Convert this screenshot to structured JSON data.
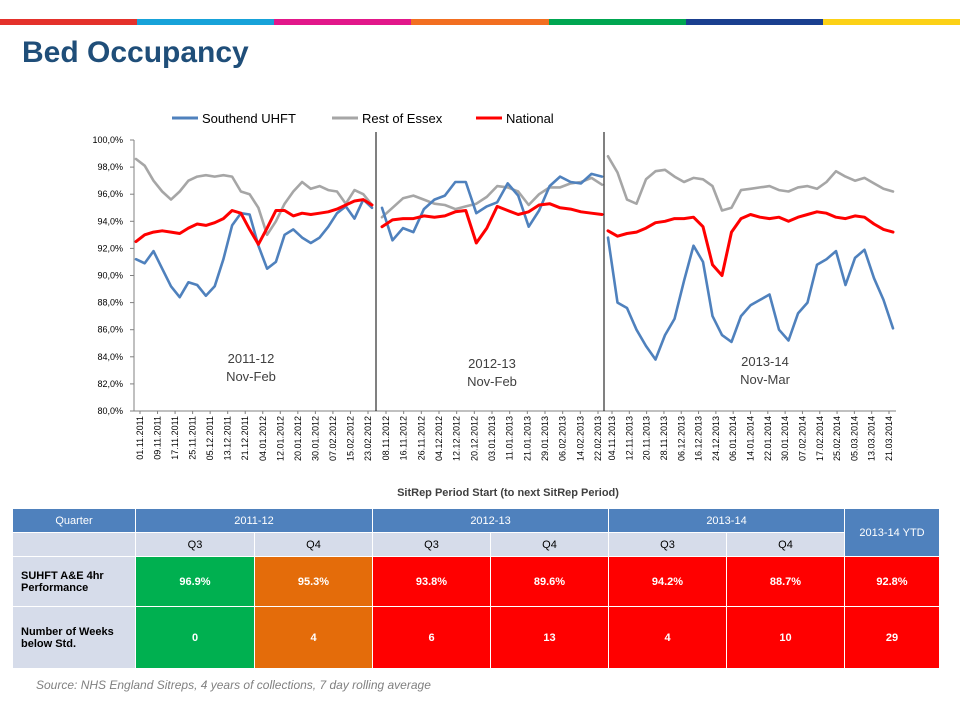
{
  "page": {
    "title": "Bed Occupancy"
  },
  "colors": {
    "top_bar": [
      "#e4312b",
      "#17a2d9",
      "#e2178a",
      "#f26f21",
      "#00a651",
      "#1a3f8f",
      "#fcd116"
    ],
    "southend": "#4f81bd",
    "rest_of_essex": "#a6a6a6",
    "national": "#ff0000",
    "table_header": "#4f81bd",
    "table_sub": "#d6dcea",
    "green": "#00b050",
    "orange": "#e46c0a",
    "red": "#ff0000"
  },
  "chart_data": {
    "type": "line",
    "xlabel": "SitRep Period Start (to next SitRep Period)",
    "ylabel": "",
    "ylim": [
      80,
      100
    ],
    "yticks": [
      "80,0%",
      "82,0%",
      "84,0%",
      "86,0%",
      "88,0%",
      "90,0%",
      "92,0%",
      "94,0%",
      "96,0%",
      "98,0%",
      "100,0%"
    ],
    "legend": {
      "position": "top",
      "entries": [
        "Southend UHFT",
        "Rest of Essex",
        "National"
      ]
    },
    "grid": false,
    "panels": [
      {
        "period": "2011-12",
        "label_lines": [
          "2011-12",
          "Nov-Feb"
        ],
        "x_ticks": [
          "01.11.2011",
          "09.11.2011",
          "17.11.2011",
          "25.11.2011",
          "05.12.2011",
          "13.12.2011",
          "21.12.2011",
          "04.01.2012",
          "12.01.2012",
          "20.01.2012",
          "30.01.2012",
          "07.02.2012",
          "15.02.2012",
          "23.02.2012"
        ],
        "series": [
          {
            "name": "Southend UHFT",
            "values": [
              91.2,
              90.9,
              91.8,
              90.5,
              89.2,
              88.4,
              89.5,
              89.3,
              88.5,
              89.2,
              91.2,
              93.7,
              94.6,
              94.5,
              92.2,
              90.5,
              91.0,
              93.0,
              93.4,
              92.8,
              92.4,
              92.8,
              93.6,
              94.6,
              95.1,
              94.2,
              95.6,
              95.0
            ]
          },
          {
            "name": "Rest of Essex",
            "values": [
              98.6,
              98.1,
              97.0,
              96.2,
              95.6,
              96.2,
              97.0,
              97.3,
              97.4,
              97.3,
              97.4,
              97.3,
              96.2,
              96.0,
              95.0,
              93.0,
              94.0,
              95.3,
              96.2,
              96.9,
              96.4,
              96.6,
              96.3,
              96.2,
              95.3,
              96.3,
              96.0,
              95.2
            ]
          },
          {
            "name": "National",
            "values": [
              92.5,
              93.0,
              93.2,
              93.3,
              93.2,
              93.1,
              93.5,
              93.8,
              93.7,
              93.9,
              94.2,
              94.8,
              94.6,
              93.4,
              92.3,
              93.5,
              94.8,
              94.8,
              94.4,
              94.6,
              94.5,
              94.6,
              94.7,
              94.9,
              95.2,
              95.5,
              95.6,
              95.2
            ]
          }
        ]
      },
      {
        "period": "2012-13",
        "label_lines": [
          "2012-13",
          "Nov-Feb"
        ],
        "x_ticks": [
          "08.11.2012",
          "16.11.2012",
          "26.11.2012",
          "04.12.2012",
          "12.12.2012",
          "20.12.2012",
          "03.01.2013",
          "11.01.2013",
          "21.01.2013",
          "29.01.2013",
          "06.02.2013",
          "14.02.2013",
          "22.02.2013"
        ],
        "series": [
          {
            "name": "Southend UHFT",
            "values": [
              95.0,
              92.6,
              93.5,
              93.2,
              94.9,
              95.6,
              95.9,
              96.9,
              96.9,
              94.6,
              95.1,
              95.4,
              96.8,
              95.9,
              93.6,
              94.8,
              96.6,
              97.3,
              96.9,
              96.8,
              97.5,
              97.3
            ]
          },
          {
            "name": "Rest of Essex",
            "values": [
              94.3,
              95.0,
              95.7,
              95.9,
              95.6,
              95.3,
              95.2,
              94.9,
              95.1,
              95.3,
              95.8,
              96.6,
              96.5,
              96.2,
              95.2,
              96.0,
              96.5,
              96.5,
              96.8,
              96.9,
              97.2,
              96.7
            ]
          },
          {
            "name": "National",
            "values": [
              93.6,
              94.1,
              94.2,
              94.2,
              94.4,
              94.3,
              94.4,
              94.7,
              94.8,
              92.4,
              93.5,
              95.1,
              94.8,
              94.5,
              94.7,
              95.2,
              95.3,
              95.0,
              94.9,
              94.7,
              94.6,
              94.5
            ]
          }
        ]
      },
      {
        "period": "2013-14",
        "label_lines": [
          "2013-14",
          "Nov-Mar"
        ],
        "x_ticks": [
          "04.11.2013",
          "12.11.2013",
          "20.11.2013",
          "28.11.2013",
          "06.12.2013",
          "16.12.2013",
          "24.12.2013",
          "06.01.2014",
          "14.01.2014",
          "22.01.2014",
          "30.01.2014",
          "07.02.2014",
          "17.02.2014",
          "25.02.2014",
          "05.03.2014",
          "13.03.2014",
          "21.03.2014"
        ],
        "series": [
          {
            "name": "Southend UHFT",
            "values": [
              92.8,
              88.0,
              87.6,
              86.0,
              84.8,
              83.8,
              85.6,
              86.8,
              89.6,
              92.2,
              91.0,
              87.0,
              85.6,
              85.1,
              87.0,
              87.8,
              88.2,
              88.6,
              86.0,
              85.2,
              87.2,
              88.0,
              90.8,
              91.2,
              91.8,
              89.3,
              91.3,
              91.9,
              89.8,
              88.2,
              86.1
            ]
          },
          {
            "name": "Rest of Essex",
            "values": [
              98.8,
              97.6,
              95.6,
              95.3,
              97.1,
              97.7,
              97.8,
              97.3,
              96.9,
              97.2,
              97.1,
              96.6,
              94.8,
              95.0,
              96.3,
              96.4,
              96.5,
              96.6,
              96.3,
              96.2,
              96.5,
              96.6,
              96.4,
              96.9,
              97.7,
              97.3,
              97.0,
              97.2,
              96.8,
              96.4,
              96.2
            ]
          },
          {
            "name": "National",
            "values": [
              93.3,
              92.9,
              93.1,
              93.2,
              93.5,
              93.9,
              94.0,
              94.2,
              94.2,
              94.3,
              93.6,
              90.8,
              90.0,
              93.2,
              94.2,
              94.5,
              94.3,
              94.2,
              94.3,
              94.0,
              94.3,
              94.5,
              94.7,
              94.6,
              94.3,
              94.2,
              94.4,
              94.3,
              93.8,
              93.4,
              93.2
            ]
          }
        ]
      }
    ]
  },
  "table": {
    "quarter_label": "Quarter",
    "years": [
      "2011-12",
      "2012-13",
      "2013-14"
    ],
    "ytd_label": "2013-14 YTD",
    "quarters": [
      "Q3",
      "Q4",
      "Q3",
      "Q4",
      "Q3",
      "Q4"
    ],
    "rows": [
      {
        "label": "SUHFT A&E 4hr Performance",
        "cells": [
          {
            "text": "96.9%",
            "status": "green"
          },
          {
            "text": "95.3%",
            "status": "orange"
          },
          {
            "text": "93.8%",
            "status": "red"
          },
          {
            "text": "89.6%",
            "status": "red"
          },
          {
            "text": "94.2%",
            "status": "red"
          },
          {
            "text": "88.7%",
            "status": "red"
          }
        ],
        "ytd": {
          "text": "92.8%",
          "status": "red"
        }
      },
      {
        "label": "Number of Weeks below Std.",
        "cells": [
          {
            "text": "0",
            "status": "green"
          },
          {
            "text": "4",
            "status": "orange"
          },
          {
            "text": "6",
            "status": "red"
          },
          {
            "text": "13",
            "status": "red"
          },
          {
            "text": "4",
            "status": "red"
          },
          {
            "text": "10",
            "status": "red"
          }
        ],
        "ytd": {
          "text": "29",
          "status": "red"
        }
      }
    ]
  },
  "footer": {
    "source": "Source: NHS England Sitreps, 4 years of collections, 7 day rolling average"
  }
}
